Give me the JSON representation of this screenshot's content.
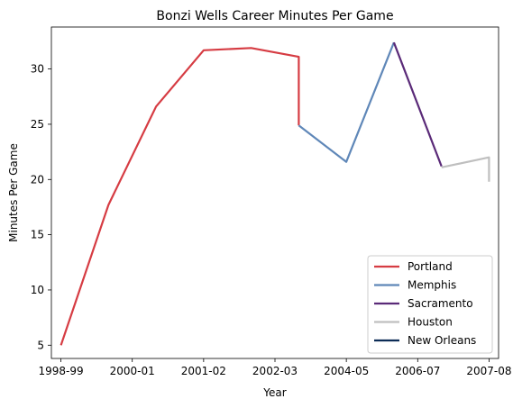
{
  "chart_data": {
    "type": "line",
    "title": "Bonzi Wells Career Minutes Per Game",
    "xlabel": "Year",
    "ylabel": "Minutes Per Game",
    "x_ticks": [
      "1998-99",
      "2000-01",
      "2001-02",
      "2002-03",
      "2004-05",
      "2006-07",
      "2007-08"
    ],
    "x_range": [
      -0.2,
      9.2
    ],
    "ylim": [
      3.8,
      33.8
    ],
    "y_ticks": [
      5,
      10,
      15,
      20,
      25,
      30
    ],
    "grid": false,
    "legend_position": "lower-right",
    "series": [
      {
        "name": "Portland",
        "color": "#d63c43",
        "points": [
          [
            0,
            5.0
          ],
          [
            1,
            17.7
          ],
          [
            2,
            26.6
          ],
          [
            3,
            31.7
          ],
          [
            4,
            31.9
          ],
          [
            5,
            31.1
          ],
          [
            5,
            24.9
          ]
        ]
      },
      {
        "name": "Memphis",
        "color": "#5f87b8",
        "points": [
          [
            5,
            24.9
          ],
          [
            6,
            21.6
          ],
          [
            7,
            32.4
          ]
        ]
      },
      {
        "name": "Sacramento",
        "color": "#5a2a78",
        "points": [
          [
            7,
            32.4
          ],
          [
            8,
            21.2
          ]
        ]
      },
      {
        "name": "Houston",
        "color": "#bfbfbf",
        "points": [
          [
            8,
            21.1
          ],
          [
            9,
            22.0
          ],
          [
            9,
            19.8
          ]
        ]
      },
      {
        "name": "New Orleans",
        "color": "#0c2c56",
        "points": []
      }
    ]
  }
}
